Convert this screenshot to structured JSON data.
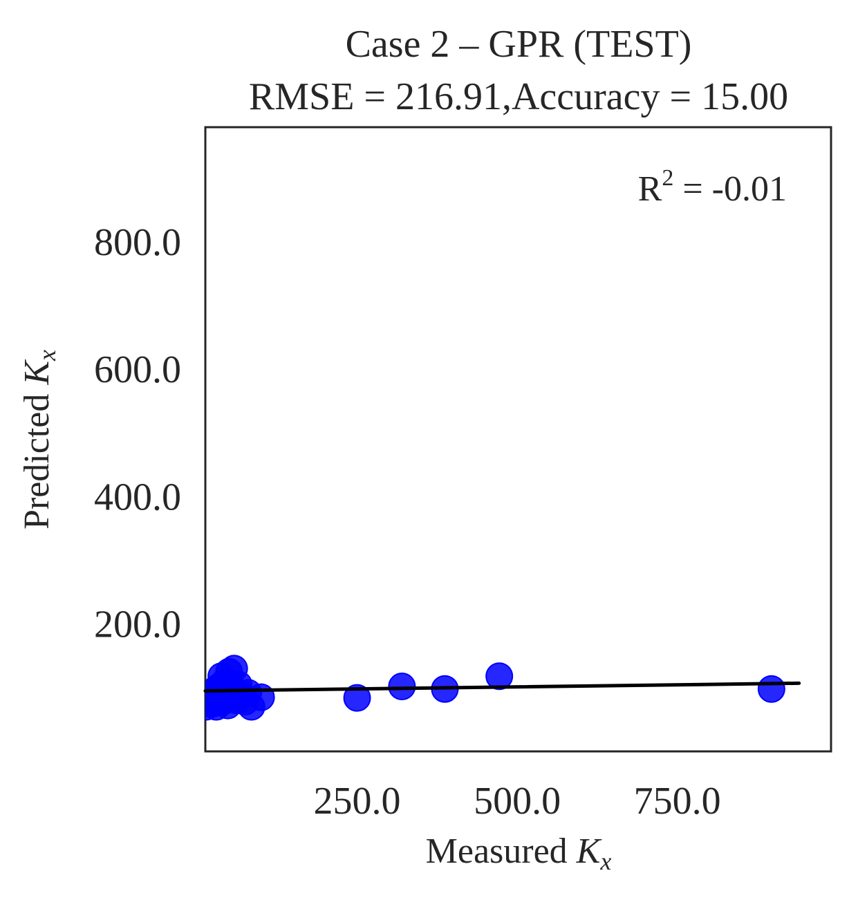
{
  "chart_data": {
    "type": "scatter",
    "title": [
      "Case 2 – GPR (TEST)",
      "RMSE = 216.91,Accuracy = 15.00"
    ],
    "xlabel": {
      "text": "Measured ",
      "var": "K",
      "sub": "x"
    },
    "ylabel": {
      "text": "Predicted ",
      "var": "K",
      "sub": "x"
    },
    "annotation": {
      "base": "R",
      "sup": "2",
      "rest": " = -0.01"
    },
    "xlim": [
      13,
      990
    ],
    "ylim": [
      0,
      980
    ],
    "xticks": [
      250,
      500,
      750
    ],
    "yticks": [
      200,
      800,
      600,
      400
    ],
    "xtick_labels": [
      "250.0",
      "500.0",
      "750.0"
    ],
    "ytick_labels": [
      "200.0",
      "800.0",
      "600.0",
      "400.0"
    ],
    "grid": false,
    "point_color": "#0000ff",
    "fit_color": "#000000",
    "points": [
      {
        "x": 14,
        "y": 70
      },
      {
        "x": 18,
        "y": 82
      },
      {
        "x": 22,
        "y": 88
      },
      {
        "x": 25,
        "y": 75
      },
      {
        "x": 28,
        "y": 95
      },
      {
        "x": 30,
        "y": 70
      },
      {
        "x": 32,
        "y": 100
      },
      {
        "x": 35,
        "y": 85
      },
      {
        "x": 38,
        "y": 118
      },
      {
        "x": 40,
        "y": 78
      },
      {
        "x": 42,
        "y": 108
      },
      {
        "x": 45,
        "y": 90
      },
      {
        "x": 48,
        "y": 72
      },
      {
        "x": 50,
        "y": 125
      },
      {
        "x": 52,
        "y": 100
      },
      {
        "x": 55,
        "y": 85
      },
      {
        "x": 58,
        "y": 130
      },
      {
        "x": 60,
        "y": 95
      },
      {
        "x": 62,
        "y": 80
      },
      {
        "x": 65,
        "y": 105
      },
      {
        "x": 70,
        "y": 88
      },
      {
        "x": 75,
        "y": 78
      },
      {
        "x": 80,
        "y": 92
      },
      {
        "x": 85,
        "y": 70
      },
      {
        "x": 100,
        "y": 85
      },
      {
        "x": 250,
        "y": 84
      },
      {
        "x": 320,
        "y": 102
      },
      {
        "x": 387,
        "y": 98
      },
      {
        "x": 472,
        "y": 118
      },
      {
        "x": 897,
        "y": 98
      }
    ],
    "fit_line": {
      "x": [
        13,
        940
      ],
      "y": [
        95,
        107
      ]
    }
  }
}
